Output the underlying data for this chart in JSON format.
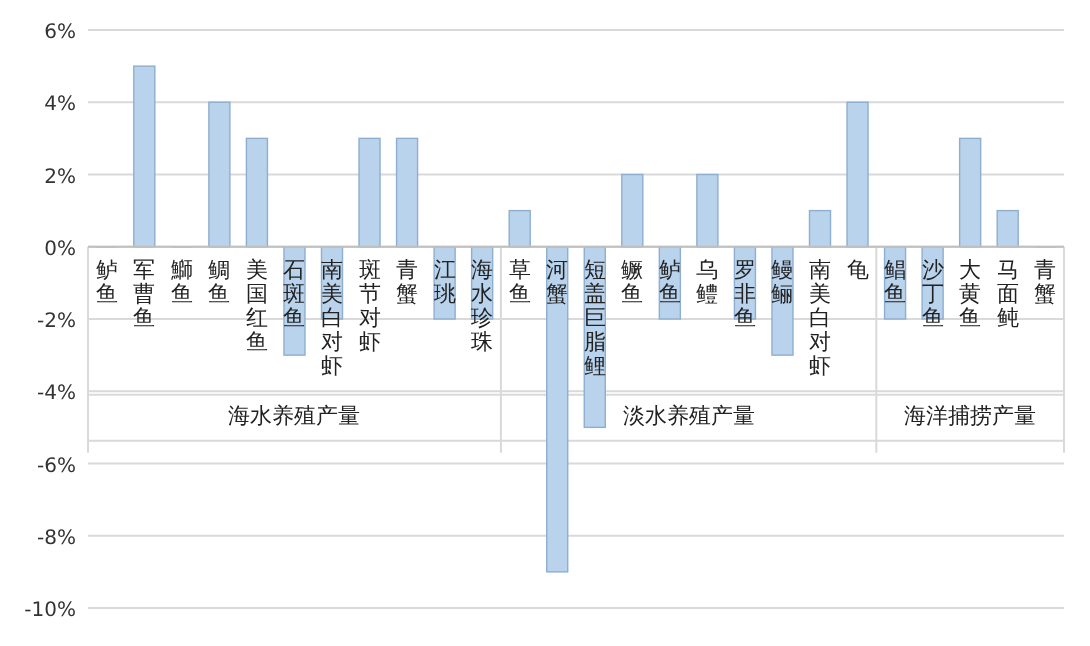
{
  "chart_data": {
    "type": "bar",
    "categories": [
      "鲈鱼",
      "军曹鱼",
      "鰤鱼",
      "鲷鱼",
      "美国红鱼",
      "石斑鱼",
      "南美白对虾",
      "斑节对虾",
      "青蟹",
      "江珧",
      "海水珍珠",
      "草鱼",
      "河蟹",
      "短盖巨脂鲤",
      "鳜鱼",
      "鲈鱼",
      "乌鳢",
      "罗非鱼",
      "鳗鲡",
      "南美白对虾",
      "龟",
      "鲳鱼",
      "沙丁鱼",
      "大黄鱼",
      "马面鲀",
      "青蟹"
    ],
    "values": [
      0,
      5,
      0,
      4,
      3,
      -3,
      -2,
      3,
      3,
      -2,
      -2,
      1,
      -9,
      -5,
      2,
      -2,
      2,
      -2,
      -3,
      1,
      4,
      -2,
      -2,
      3,
      1,
      0
    ],
    "color": "#b9d3ec",
    "ylim": [
      -10,
      6
    ],
    "yticks": [
      {
        "value": -10,
        "label": "-10%"
      },
      {
        "value": -8,
        "label": "-8%"
      },
      {
        "value": -6,
        "label": "-6%"
      },
      {
        "value": -4,
        "label": "-4%"
      },
      {
        "value": -2,
        "label": "-2%"
      },
      {
        "value": 0,
        "label": "0%"
      },
      {
        "value": 2,
        "label": "2%"
      },
      {
        "value": 4,
        "label": "4%"
      },
      {
        "value": 6,
        "label": "6%"
      }
    ],
    "grid": "y",
    "annotations": [
      "海水养殖产量",
      "淡水养殖产量",
      "海洋捕捞产量"
    ]
  }
}
